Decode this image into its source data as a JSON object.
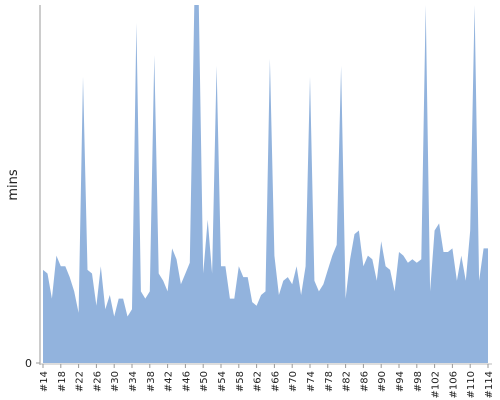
{
  "chart_data": {
    "type": "area",
    "y_label": "mins",
    "color": "#92b3dd",
    "ylim": [
      0,
      100
    ],
    "yticks": [
      0
    ],
    "categories": [
      "#14",
      null,
      null,
      null,
      "#18",
      null,
      null,
      null,
      "#22",
      null,
      null,
      null,
      "#26",
      null,
      null,
      null,
      "#30",
      null,
      null,
      null,
      "#34",
      null,
      null,
      null,
      "#38",
      null,
      null,
      null,
      "#42",
      null,
      null,
      null,
      "#46",
      null,
      null,
      null,
      "#50",
      null,
      null,
      null,
      "#54",
      null,
      null,
      null,
      "#58",
      null,
      null,
      null,
      "#62",
      null,
      null,
      null,
      "#66",
      null,
      null,
      null,
      "#70",
      null,
      null,
      null,
      "#74",
      null,
      null,
      null,
      "#78",
      null,
      null,
      null,
      "#82",
      null,
      null,
      null,
      "#86",
      null,
      null,
      null,
      "#90",
      null,
      null,
      null,
      "#94",
      null,
      null,
      null,
      "#98",
      null,
      null,
      null,
      "#102",
      null,
      null,
      null,
      "#106",
      null,
      null,
      null,
      "#110",
      null,
      null,
      null,
      "#114"
    ],
    "values": [
      26,
      25,
      18,
      30,
      27,
      27,
      24,
      20,
      14,
      80,
      26,
      25,
      16,
      27,
      15,
      19,
      13,
      18,
      18,
      13,
      15,
      95,
      20,
      18,
      20,
      86,
      25,
      23,
      20,
      32,
      29,
      22,
      25,
      28,
      100,
      100,
      25,
      40,
      25,
      83,
      27,
      27,
      18,
      18,
      27,
      24,
      24,
      17,
      16,
      19,
      20,
      85,
      30,
      19,
      23,
      24,
      22,
      27,
      19,
      27,
      80,
      23,
      20,
      22,
      26,
      30,
      33,
      83,
      18,
      29,
      36,
      37,
      27,
      30,
      29,
      23,
      34,
      27,
      26,
      20,
      31,
      30,
      28,
      29,
      28,
      29,
      100,
      20,
      37,
      39,
      31,
      31,
      32,
      23,
      30,
      23,
      37,
      100,
      23,
      32,
      32
    ]
  }
}
